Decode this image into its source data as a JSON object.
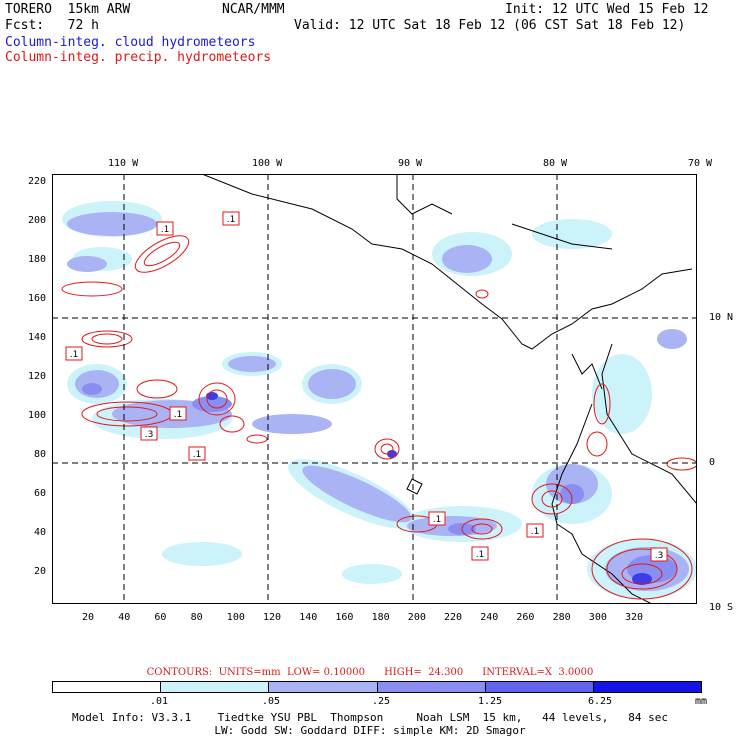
{
  "header": {
    "line1_left": "TORERO  15km ARW",
    "line1_mid": "NCAR/MMM",
    "line1_right": "Init: 12 UTC Wed 15 Feb 12",
    "line2_left": "Fcst:   72 h",
    "line2_right": "Valid: 12 UTC Sat 18 Feb 12 (06 CST Sat 18 Feb 12)",
    "field1": "Column-integ. cloud hydrometeors",
    "field2": "Column-integ. precip. hydrometeors"
  },
  "map": {
    "top_lon_labels": [
      "110 W",
      "100 W",
      "90 W",
      "80 W",
      "70 W"
    ],
    "right_lat_labels": [
      "10 N",
      "0",
      "10 S"
    ],
    "y_ticks": [
      "220",
      "200",
      "180",
      "160",
      "140",
      "120",
      "100",
      "80",
      "60",
      "40",
      "20"
    ],
    "x_ticks": [
      "20",
      "40",
      "60",
      "80",
      "100",
      "120",
      "140",
      "160",
      "180",
      "200",
      "220",
      "240",
      "260",
      "280",
      "300",
      "320"
    ],
    "contour_labels": [
      ".1",
      ".1",
      ".1",
      ".1",
      ".3",
      ".1",
      ".1",
      ".1",
      ".1",
      ".3"
    ],
    "colors": {
      "shade1": "#ccf2fa",
      "shade2": "#aab4f5",
      "shade3": "#8a8ef0",
      "shade4": "#6264ec",
      "shade5": "#3c3ce8",
      "shade6": "#1414e6",
      "contour": "#e01818"
    }
  },
  "legend": {
    "contours_text": "CONTOURS:  UNITS=mm  LOW= 0.10000      HIGH=  24.300      INTERVAL=X  3.0000",
    "labels": [
      ".01",
      ".05",
      ".25",
      "1.25",
      "6.25",
      "mm"
    ]
  },
  "footer": {
    "line1": "Model Info: V3.3.1    Tiedtke YSU PBL  Thompson     Noah LSM  15 km,   44 levels,   84 sec",
    "line2": "LW: Godd SW: Goddard DIFF: simple KM: 2D Smagor"
  }
}
